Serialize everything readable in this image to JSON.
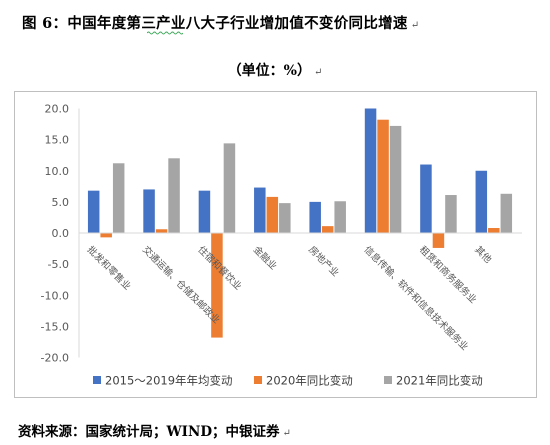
{
  "document": {
    "title": "图 6：中国年度第三产业八大子行业增加值不变价同比增速",
    "subtitle": "（单位：%）",
    "source": "资料来源：国家统计局；WIND；中银证券",
    "para_mark": "↵"
  },
  "chart_data": {
    "type": "bar",
    "title": "",
    "xlabel": "",
    "ylabel": "",
    "ylim": [
      -20,
      20
    ],
    "yticks": [
      -20.0,
      -15.0,
      -10.0,
      -5.0,
      0.0,
      5.0,
      10.0,
      15.0,
      20.0
    ],
    "ytick_labels": [
      "-20.0",
      "-15.0",
      "-10.0",
      "-5.0",
      "0.0",
      "5.0",
      "10.0",
      "15.0",
      "20.0"
    ],
    "grid": false,
    "legend_position": "bottom",
    "categories": [
      "批发和零售业",
      "交通运输、仓储及邮政业",
      "住宿和餐饮业",
      "金融业",
      "房地产业",
      "信息传输、软件和信息技术服务业",
      "租赁和商务服务业",
      "其他"
    ],
    "series": [
      {
        "name": "2015～2019年年均变动",
        "color": "#4472C4",
        "values": [
          6.8,
          7.0,
          6.8,
          7.3,
          5.0,
          20.0,
          11.0,
          10.0
        ]
      },
      {
        "name": "2020年同比变动",
        "color": "#ED7D31",
        "values": [
          -0.7,
          0.6,
          -16.8,
          5.8,
          1.1,
          18.2,
          -2.4,
          0.8
        ]
      },
      {
        "name": "2021年同比变动",
        "color": "#A5A5A5",
        "values": [
          11.2,
          12.0,
          14.4,
          4.8,
          5.1,
          17.2,
          6.1,
          6.3
        ]
      }
    ]
  }
}
